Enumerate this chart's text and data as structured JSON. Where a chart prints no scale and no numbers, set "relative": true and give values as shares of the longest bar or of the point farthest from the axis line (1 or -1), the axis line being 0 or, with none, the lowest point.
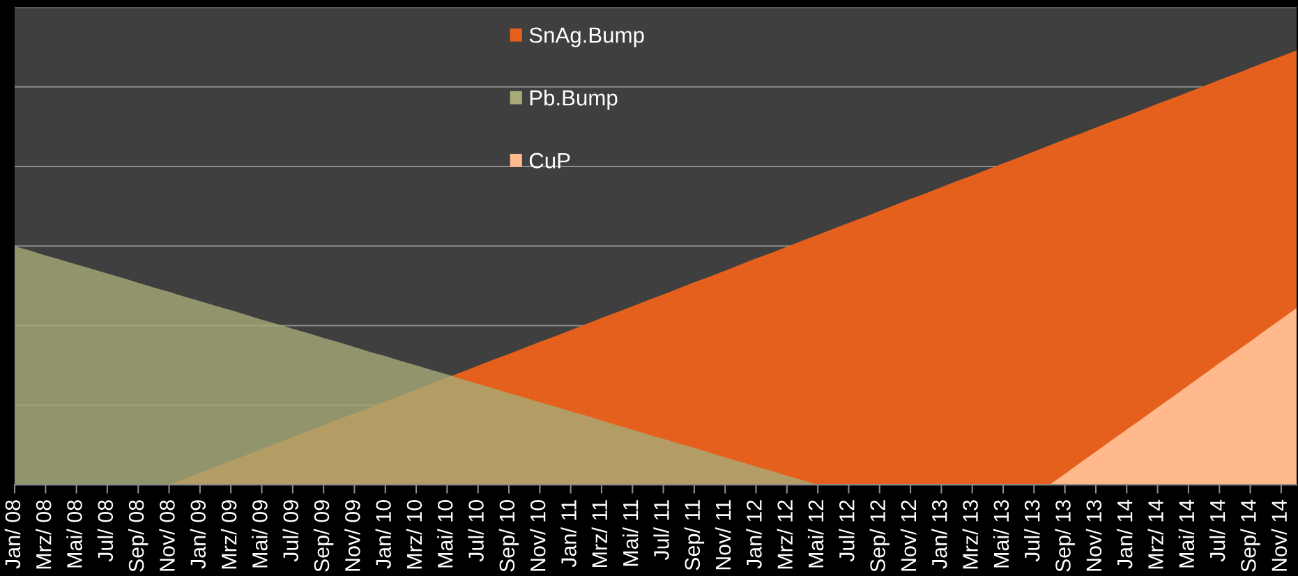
{
  "chart_data": {
    "type": "area",
    "relative": true,
    "grid": "y",
    "legend": "top",
    "categories": [
      "Jan/ 08",
      null,
      "Mrz/ 08",
      null,
      "Mai/ 08",
      null,
      "Jul/ 08",
      null,
      "Sep/ 08",
      null,
      "Nov/ 08",
      null,
      "Jan/ 09",
      null,
      "Mrz/ 09",
      null,
      "Mai/ 09",
      null,
      "Jul/ 09",
      null,
      "Sep/ 09",
      null,
      "Nov/ 09",
      null,
      "Jan/ 10",
      null,
      "Mrz/ 10",
      null,
      "Mai/ 10",
      null,
      "Jul/ 10",
      null,
      "Sep/ 10",
      null,
      "Nov/ 10",
      null,
      "Jan/ 11",
      null,
      "Mrz/ 11",
      null,
      "Mai/ 11",
      null,
      "Jul/ 11",
      null,
      "Sep/ 11",
      null,
      "Nov/ 11",
      null,
      "Jan/ 12",
      null,
      "Mrz/ 12",
      null,
      "Mai/ 12",
      null,
      "Jul/ 12",
      null,
      "Sep/ 12",
      null,
      "Nov/ 12",
      null,
      "Jan/ 13",
      null,
      "Mrz/ 13",
      null,
      "Mai/ 13",
      null,
      "Jul/ 13",
      null,
      "Sep/ 13",
      null,
      "Nov/ 13",
      null,
      "Jan/ 14",
      null,
      "Mrz/ 14",
      null,
      "Mai/ 14",
      null,
      "Jul/ 14",
      null,
      "Sep/ 14",
      null,
      "Nov/ 14",
      null
    ],
    "series": [
      {
        "name": "SnAg.Bump",
        "color": "#e4601c",
        "values": [
          0,
          0,
          0,
          0,
          0,
          0,
          0,
          0,
          0,
          0,
          0,
          0.014,
          0.027,
          0.041,
          0.055,
          0.068,
          0.082,
          0.096,
          0.11,
          0.123,
          0.137,
          0.151,
          0.164,
          0.178,
          0.192,
          0.205,
          0.219,
          0.233,
          0.247,
          0.26,
          0.274,
          0.288,
          0.301,
          0.315,
          0.329,
          0.342,
          0.356,
          0.37,
          0.384,
          0.397,
          0.411,
          0.425,
          0.438,
          0.452,
          0.466,
          0.479,
          0.493,
          0.507,
          0.521,
          0.534,
          0.548,
          0.562,
          0.575,
          0.589,
          0.603,
          0.616,
          0.63,
          0.644,
          0.658,
          0.671,
          0.685,
          0.699,
          0.712,
          0.726,
          0.74,
          0.753,
          0.767,
          0.781,
          0.795,
          0.808,
          0.822,
          0.836,
          0.849,
          0.863,
          0.877,
          0.89,
          0.904,
          0.918,
          0.932,
          0.945,
          0.959,
          0.973,
          0.986,
          1.0
        ]
      },
      {
        "name": "Pb.Bump",
        "color": "#a8ab78",
        "values": [
          0.549,
          0.539,
          0.528,
          0.518,
          0.507,
          0.497,
          0.486,
          0.476,
          0.465,
          0.454,
          0.444,
          0.433,
          0.423,
          0.412,
          0.402,
          0.391,
          0.38,
          0.37,
          0.359,
          0.349,
          0.338,
          0.328,
          0.317,
          0.306,
          0.296,
          0.285,
          0.275,
          0.264,
          0.254,
          0.243,
          0.232,
          0.222,
          0.211,
          0.201,
          0.19,
          0.18,
          0.169,
          0.159,
          0.148,
          0.137,
          0.127,
          0.116,
          0.106,
          0.095,
          0.085,
          0.074,
          0.063,
          0.053,
          0.042,
          0.032,
          0.021,
          0.011,
          0,
          0,
          0,
          0,
          0,
          0,
          0,
          0,
          0,
          0,
          0,
          0,
          0,
          0,
          0,
          0,
          0,
          0,
          0,
          0,
          0,
          0,
          0,
          0,
          0,
          0,
          0,
          0,
          0,
          0,
          0,
          0
        ]
      },
      {
        "name": "CuP",
        "color": "#ffb98c",
        "values": [
          0,
          0,
          0,
          0,
          0,
          0,
          0,
          0,
          0,
          0,
          0,
          0,
          0,
          0,
          0,
          0,
          0,
          0,
          0,
          0,
          0,
          0,
          0,
          0,
          0,
          0,
          0,
          0,
          0,
          0,
          0,
          0,
          0,
          0,
          0,
          0,
          0,
          0,
          0,
          0,
          0,
          0,
          0,
          0,
          0,
          0,
          0,
          0,
          0,
          0,
          0,
          0,
          0,
          0,
          0,
          0,
          0,
          0,
          0,
          0,
          0,
          0,
          0,
          0,
          0,
          0,
          0,
          0,
          0.025,
          0.051,
          0.076,
          0.102,
          0.127,
          0.152,
          0.178,
          0.203,
          0.229,
          0.254,
          0.28,
          0.305,
          0.33,
          0.356,
          0.381,
          0.407
        ]
      }
    ]
  }
}
